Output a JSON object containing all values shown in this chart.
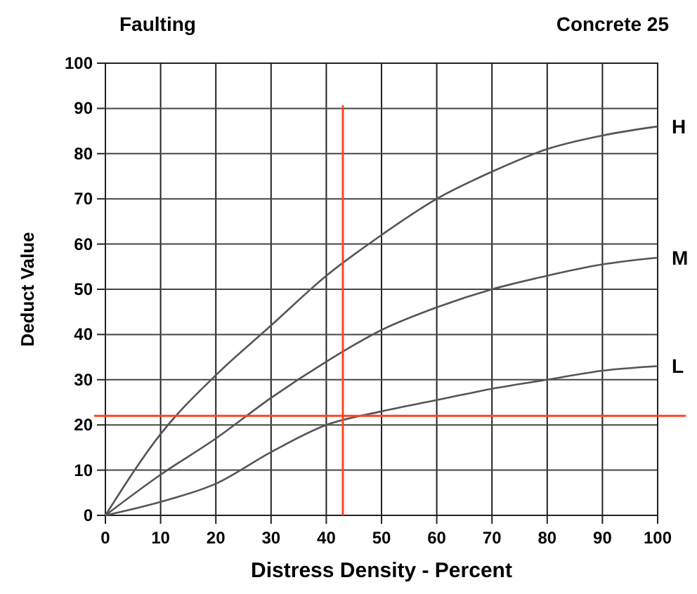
{
  "chart_data": {
    "type": "line",
    "title": "Faulting",
    "subtitle": "Concrete 25",
    "xlabel": "Distress Density - Percent",
    "ylabel": "Deduct Value",
    "x": [
      0,
      10,
      20,
      30,
      40,
      50,
      60,
      70,
      80,
      90,
      100
    ],
    "series": [
      {
        "name": "H",
        "color": "#555555",
        "values": [
          0,
          18,
          31,
          42,
          53,
          62,
          70,
          76,
          81,
          84,
          86
        ]
      },
      {
        "name": "M",
        "color": "#555555",
        "values": [
          0,
          9,
          17,
          26,
          34,
          41,
          46,
          50,
          53,
          55.5,
          57
        ]
      },
      {
        "name": "L",
        "color": "#555555",
        "values": [
          0,
          3,
          7,
          14,
          20,
          23,
          25.5,
          28,
          30,
          32,
          33
        ]
      }
    ],
    "xlim": [
      0,
      100
    ],
    "ylim": [
      0,
      100
    ],
    "xticks": [
      0,
      10,
      20,
      30,
      40,
      50,
      60,
      70,
      80,
      90,
      100
    ],
    "yticks": [
      0,
      10,
      20,
      30,
      40,
      50,
      60,
      70,
      80,
      90,
      100
    ],
    "grid": true,
    "marker": "none",
    "line_style": "solid",
    "ref_lines": [
      {
        "axis": "x",
        "value": 43,
        "color": "#ff4422"
      },
      {
        "axis": "y",
        "value": 22,
        "color": "#ff4422"
      }
    ]
  }
}
